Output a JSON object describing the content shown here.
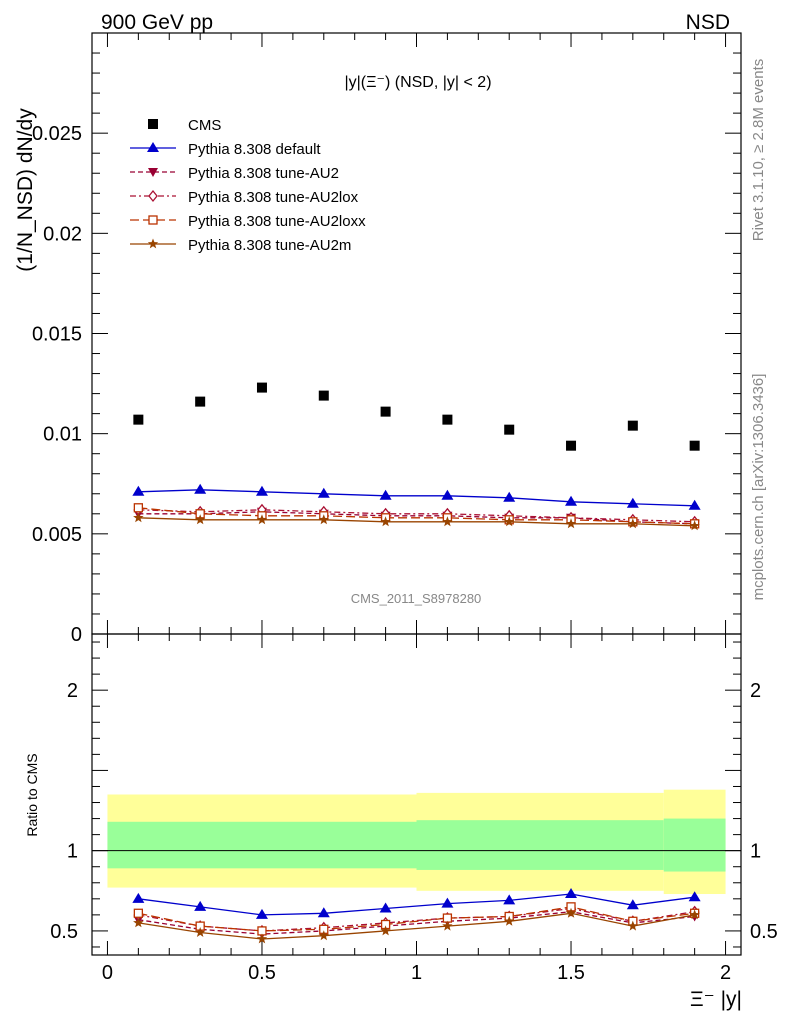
{
  "header": {
    "left": "900 GeV pp",
    "right": "NSD"
  },
  "colors": {
    "cms": "#000000",
    "default": "#0000cc",
    "au2": "#990033",
    "au2lox": "#aa1133",
    "au2loxx": "#bb3300",
    "au2m": "#994400",
    "band_inner": "#99ff99",
    "band_outer": "#ffff99"
  },
  "side_labels": {
    "rivet": "Rivet 3.1.10, ≥ 2.8M events",
    "mcplots": "mcplots.cern.ch [arXiv:1306.3436]"
  },
  "chart_data": [
    {
      "type": "scatter",
      "title": "|y|(Ξ⁻) (NSD, |y| < 2)",
      "ylabel": "(1/N_NSD) dN/dy",
      "watermark": "CMS_2011_S8978280",
      "ylim": [
        0,
        0.03
      ],
      "yticks": [
        "0",
        "0.005",
        "0.01",
        "0.015",
        "0.02",
        "0.025"
      ],
      "x": [
        0.1,
        0.3,
        0.5,
        0.7,
        0.9,
        1.1,
        1.3,
        1.5,
        1.7,
        1.9
      ],
      "series": [
        {
          "name": "CMS",
          "key": "cms",
          "marker": "square",
          "line": false,
          "values": [
            0.0107,
            0.0116,
            0.0123,
            0.0119,
            0.0111,
            0.0107,
            0.0102,
            0.0094,
            0.0104,
            0.0094
          ]
        },
        {
          "name": "Pythia 8.308 default",
          "key": "default",
          "marker": "triangle",
          "line": "solid",
          "values": [
            0.0071,
            0.0072,
            0.0071,
            0.007,
            0.0069,
            0.0069,
            0.0068,
            0.0066,
            0.0065,
            0.0064
          ]
        },
        {
          "name": "Pythia 8.308 tune-AU2",
          "key": "au2",
          "marker": "triangle-down",
          "line": "dashed",
          "values": [
            0.006,
            0.006,
            0.0061,
            0.006,
            0.0059,
            0.0059,
            0.0058,
            0.0058,
            0.0056,
            0.0055
          ]
        },
        {
          "name": "Pythia 8.308 tune-AU2lox",
          "key": "au2lox",
          "marker": "diamond",
          "line": "dashdot",
          "values": [
            0.0062,
            0.0061,
            0.0062,
            0.0061,
            0.006,
            0.006,
            0.0059,
            0.0058,
            0.0057,
            0.0056
          ]
        },
        {
          "name": "Pythia 8.308 tune-AU2loxx",
          "key": "au2loxx",
          "marker": "square-open",
          "line": "longdash",
          "values": [
            0.0063,
            0.006,
            0.0059,
            0.0059,
            0.0058,
            0.0058,
            0.0057,
            0.0057,
            0.0056,
            0.0055
          ]
        },
        {
          "name": "Pythia 8.308 tune-AU2m",
          "key": "au2m",
          "marker": "star",
          "line": "solid",
          "values": [
            0.0058,
            0.0057,
            0.0057,
            0.0057,
            0.0056,
            0.0056,
            0.0056,
            0.0055,
            0.0055,
            0.0054
          ]
        }
      ]
    },
    {
      "type": "line",
      "ylabel": "Ratio to CMS",
      "xlabel": "Ξ⁻ |y|",
      "xlim": [
        -0.05,
        2.05
      ],
      "ylim": [
        0.35,
        2.35
      ],
      "xticks": [
        "0",
        "0.5",
        "1",
        "1.5",
        "2"
      ],
      "yticks": [
        "0.5",
        "1",
        "2"
      ],
      "x": [
        0.1,
        0.3,
        0.5,
        0.7,
        0.9,
        1.1,
        1.3,
        1.5,
        1.7,
        1.9
      ],
      "bands": {
        "edges": [
          0.0,
          1.0,
          1.8,
          2.0
        ],
        "inner": [
          [
            0.89,
            1.18
          ],
          [
            0.88,
            1.19
          ],
          [
            0.87,
            1.2
          ]
        ],
        "outer": [
          [
            0.77,
            1.35
          ],
          [
            0.75,
            1.36
          ],
          [
            0.73,
            1.38
          ]
        ]
      },
      "series": [
        {
          "key": "default",
          "values": [
            0.7,
            0.65,
            0.6,
            0.61,
            0.64,
            0.67,
            0.69,
            0.73,
            0.66,
            0.71
          ]
        },
        {
          "key": "au2",
          "values": [
            0.57,
            0.51,
            0.48,
            0.5,
            0.53,
            0.56,
            0.58,
            0.62,
            0.55,
            0.59
          ]
        },
        {
          "key": "au2lox",
          "values": [
            0.6,
            0.53,
            0.5,
            0.52,
            0.55,
            0.58,
            0.59,
            0.64,
            0.56,
            0.62
          ]
        },
        {
          "key": "au2loxx",
          "values": [
            0.61,
            0.53,
            0.5,
            0.51,
            0.54,
            0.58,
            0.59,
            0.65,
            0.56,
            0.61
          ]
        },
        {
          "key": "au2m",
          "values": [
            0.55,
            0.49,
            0.45,
            0.47,
            0.5,
            0.53,
            0.56,
            0.61,
            0.53,
            0.6
          ]
        }
      ]
    }
  ]
}
